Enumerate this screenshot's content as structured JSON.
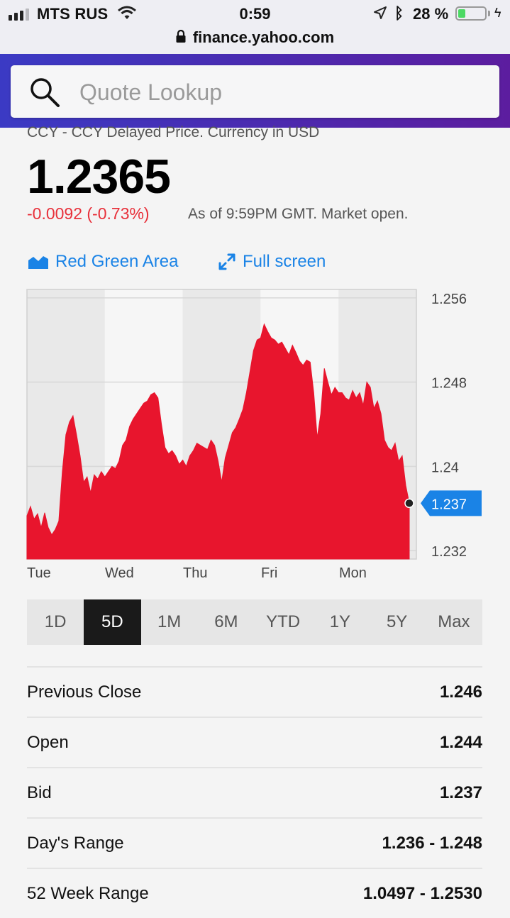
{
  "status_bar": {
    "carrier": "MTS RUS",
    "time": "0:59",
    "battery_percent": "28 %",
    "battery_level": 0.28
  },
  "url_bar": {
    "domain": "finance.yahoo.com"
  },
  "search": {
    "placeholder": "Quote Lookup"
  },
  "quote": {
    "subtitle": "CCY - CCY Delayed Price. Currency in USD",
    "price": "1.2365",
    "change": "-0.0092 (-0.73%)",
    "as_of": "As of 9:59PM GMT. Market open."
  },
  "chart_tools": {
    "type_label": "Red Green Area",
    "fullscreen_label": "Full screen"
  },
  "colors": {
    "accent": "#1a83e6",
    "negative": "#e8303a",
    "area": "#e8152d",
    "header": "#4a2bb0"
  },
  "chart_data": {
    "type": "area",
    "x_labels": [
      "Tue",
      "Wed",
      "Thu",
      "Fri",
      "Mon"
    ],
    "y_ticks": [
      "1.256",
      "1.248",
      "1.24",
      "1.232"
    ],
    "ylim": [
      1.2312,
      1.2568
    ],
    "current_value_label": "1.237",
    "current_value": 1.2365,
    "series": [
      {
        "values": [
          1.2353,
          1.2362,
          1.235,
          1.2355,
          1.2342,
          1.2356,
          1.2342,
          1.2335,
          1.234,
          1.2348,
          1.2395,
          1.243,
          1.2442,
          1.2448,
          1.243,
          1.241,
          1.2385,
          1.239,
          1.2375,
          1.2392,
          1.2388,
          1.2395,
          1.239,
          1.2395,
          1.24,
          1.2398,
          1.2405,
          1.242,
          1.2425,
          1.2438,
          1.2445,
          1.245,
          1.2455,
          1.246,
          1.2462,
          1.2468,
          1.247,
          1.2465,
          1.244,
          1.2418,
          1.2412,
          1.2415,
          1.241,
          1.2402,
          1.2406,
          1.24,
          1.241,
          1.2415,
          1.2422,
          1.242,
          1.2418,
          1.2416,
          1.2425,
          1.242,
          1.2405,
          1.2385,
          1.2408,
          1.242,
          1.2432,
          1.2437,
          1.2445,
          1.2454,
          1.247,
          1.249,
          1.251,
          1.252,
          1.2522,
          1.2535,
          1.2528,
          1.2522,
          1.252,
          1.2516,
          1.2518,
          1.2512,
          1.2506,
          1.2515,
          1.2508,
          1.25,
          1.2496,
          1.2501,
          1.2499,
          1.247,
          1.2427,
          1.245,
          1.2493,
          1.248,
          1.2468,
          1.2475,
          1.247,
          1.247,
          1.2465,
          1.2463,
          1.2472,
          1.2465,
          1.247,
          1.2458,
          1.248,
          1.2475,
          1.2455,
          1.2462,
          1.245,
          1.2425,
          1.2418,
          1.2415,
          1.2422,
          1.2405,
          1.241,
          1.2382,
          1.2365
        ]
      }
    ]
  },
  "range_tabs": [
    "1D",
    "5D",
    "1M",
    "6M",
    "YTD",
    "1Y",
    "5Y",
    "Max"
  ],
  "range_active": "5D",
  "stats": [
    {
      "label": "Previous Close",
      "value": "1.246"
    },
    {
      "label": "Open",
      "value": "1.244"
    },
    {
      "label": "Bid",
      "value": "1.237"
    },
    {
      "label": "Day's Range",
      "value": "1.236 - 1.248"
    },
    {
      "label": "52 Week Range",
      "value": "1.0497 - 1.2530"
    }
  ]
}
